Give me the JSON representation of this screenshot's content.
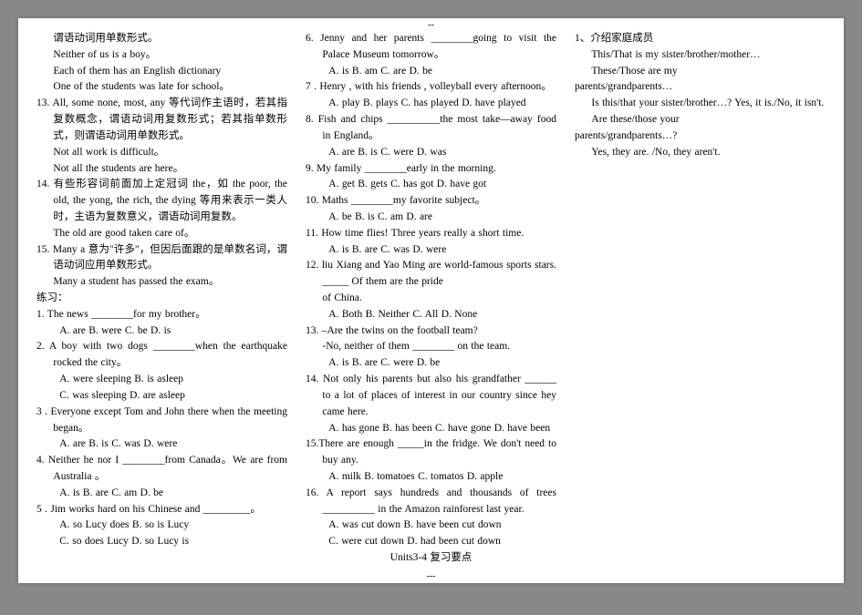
{
  "col1": {
    "l1": "谓语动词用单数形式。",
    "l2": "Neither of us is a boy。",
    "l3": "Each of them has an English dictionary",
    "l4": "One of the students was late for school。",
    "r13a": "13. All, some none, most, any 等代词作主语时，若其指复数概念，谓语动词用复数形式；若其指单数形式，则谓语动词用单数形式。",
    "r13b": "Not all work is difficult。",
    "r13c": "Not all the students are here。",
    "r14a": "14. 有些形容词前面加上定冠词 the，如 the poor, the old, the yong, the rich, the dying 等用来表示一类人时，主语为复数意义，谓语动词用复数。",
    "r14b": "The old are good taken care of。",
    "r15a": "15. Many a 意为\"许多\"，但因后面跟的是单数名词，谓语动词应用单数形式。",
    "r15b": "Many a student has passed the exam。",
    "exLabel": "练习：",
    "q1": "1. The news ________for my brother。",
    "q1opt": "A. are        B. were        C. be     D. is",
    "q2": "2. A boy with two dogs ________when the earthquake rocked the city。",
    "q2optA": "A. were sleeping            B. is asleep",
    "q2optB": "C. was sleeping             D. are asleep",
    "q3": "3 .  Everyone   except   Tom   and   John there when the meeting began。",
    "q3opt": "A. are       B. is       C. was     D. were"
  },
  "col2": {
    "q4": "4. Neither he nor I ________from Canada。We are from Australia 。",
    "q4opt": "A. is         B. are         C. am     D. be",
    "q5": "5 .   Jim   works   hard   on   his   Chinese   and _________。",
    "q5optA": "A. so Lucy does                 B. so is Lucy",
    "q5optB": "C. so does Lucy                 D. so Lucy is",
    "q6": "6. Jenny and her parents ________going to visit the Palace Museum tomorrow。",
    "q6opt": "A. is        B. am        C. are     D. be",
    "q7": "7 .   Henry  ,  with   his   friends  , volleyball every afternoon。",
    "q7optA": "A. play         B. plays         C. has played     D. have played",
    "q8": "8. Fish and chips __________the most take—away food in England。",
    "q8opt": "A. are        B. is        C. were     D. was",
    "q9": "9. My family ________early in the morning.",
    "q9opt": "A. get        B. gets        C. has got     D. have got",
    "q10": "10. Maths ________my favorite subject。",
    "q10opt": "A. be        B. is        C. am     D. are",
    "q11": "11.    How    time    flies!    Three    years really a short time.",
    "q11opt": "A. is        B. are        C. was     D. were",
    "q12": "12. liu Xiang and Yao Ming are world-famous sports stars. _____ Of them are the pride"
  },
  "col3": {
    "q12b": "of China.",
    "q12opt": "A. Both       B. Neither       C. All     D. None",
    "q13": "13. –Are the twins on the football team?",
    "q13b": "-No, neither of them ________ on the team.",
    "q13opt": "A. is       B. are       C. were      D. be",
    "q14": "14.   Not   only   his   parents   but   also   his grandfather ______ to a lot of places of interest in our country since hey came here.",
    "q14opt": "A. has gone      B. has been      C. have gone      D. have been",
    "q15": "15.There are enough _____in the fridge. We don't need to buy any.",
    "q15opt": "A. milk      B. tomatoes      C. tomatos     D. apple",
    "q16": "16. A report says hundreds and thousands of trees   __________   in   the   Amazon rainforest last year.",
    "q16optA": "A. was cut down      B. have been cut down",
    "q16optB": "C. were cut down      D. had been cut down",
    "unitTitle": "Units3-4 复习要点",
    "s1": "1、介绍家庭成员",
    "s1a": "This/That is my sister/brother/mother…",
    "s1b": "These/Those are my",
    "s1c": "parents/grandparents…",
    "s1d": "Is this/that your sister/brother…? Yes, it is./No, it isn't.",
    "s1e": "Are these/those your",
    "s1f": "parents/grandparents…?",
    "s1g": "Yes, they are.  /No, they aren't."
  },
  "topDash": "--",
  "bottomDash": "---"
}
